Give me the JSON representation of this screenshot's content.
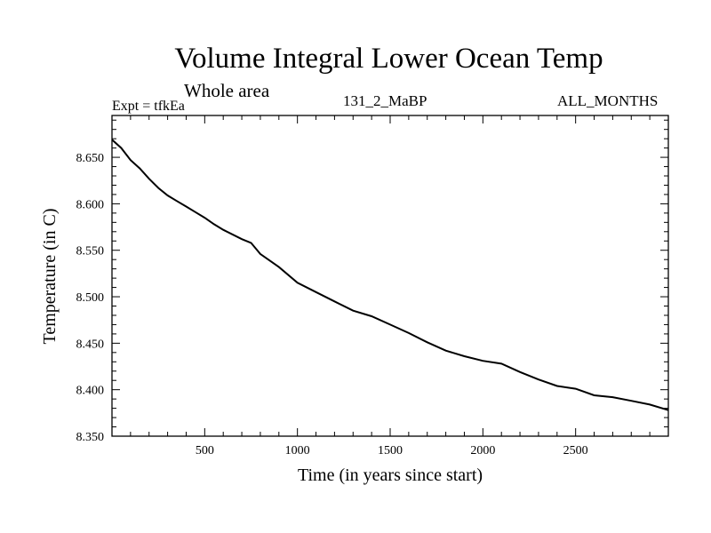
{
  "header": {
    "title": "Volume Integral Lower Ocean Temp",
    "subtitle": "Whole area",
    "expt": "Expt = tfkEa",
    "run": "131_2_MaBP",
    "months": "ALL_MONTHS"
  },
  "chart_data": {
    "type": "line",
    "xlabel": "Time (in years since start)",
    "ylabel": "Temperature (in C)",
    "xlim": [
      0,
      3000
    ],
    "ylim": [
      8.35,
      8.695
    ],
    "xticks": [
      500,
      1000,
      1500,
      2000,
      2500
    ],
    "yticks": [
      "8.350",
      "8.400",
      "8.450",
      "8.500",
      "8.550",
      "8.600",
      "8.650"
    ],
    "grid": false,
    "series": [
      {
        "x": [
          0,
          50,
          100,
          150,
          200,
          250,
          300,
          350,
          400,
          450,
          500,
          550,
          600,
          700,
          750,
          800,
          900,
          1000,
          1100,
          1200,
          1300,
          1400,
          1500,
          1600,
          1700,
          1800,
          1900,
          2000,
          2100,
          2200,
          2300,
          2400,
          2500,
          2600,
          2700,
          2800,
          2900,
          3000
        ],
        "y": [
          8.669,
          8.66,
          8.647,
          8.638,
          8.627,
          8.617,
          8.609,
          8.603,
          8.597,
          8.591,
          8.585,
          8.578,
          8.572,
          8.562,
          8.558,
          8.546,
          8.532,
          8.515,
          8.505,
          8.495,
          8.485,
          8.479,
          8.47,
          8.461,
          8.451,
          8.442,
          8.436,
          8.431,
          8.428,
          8.419,
          8.411,
          8.404,
          8.401,
          8.394,
          8.392,
          8.388,
          8.384,
          8.378
        ]
      }
    ]
  }
}
